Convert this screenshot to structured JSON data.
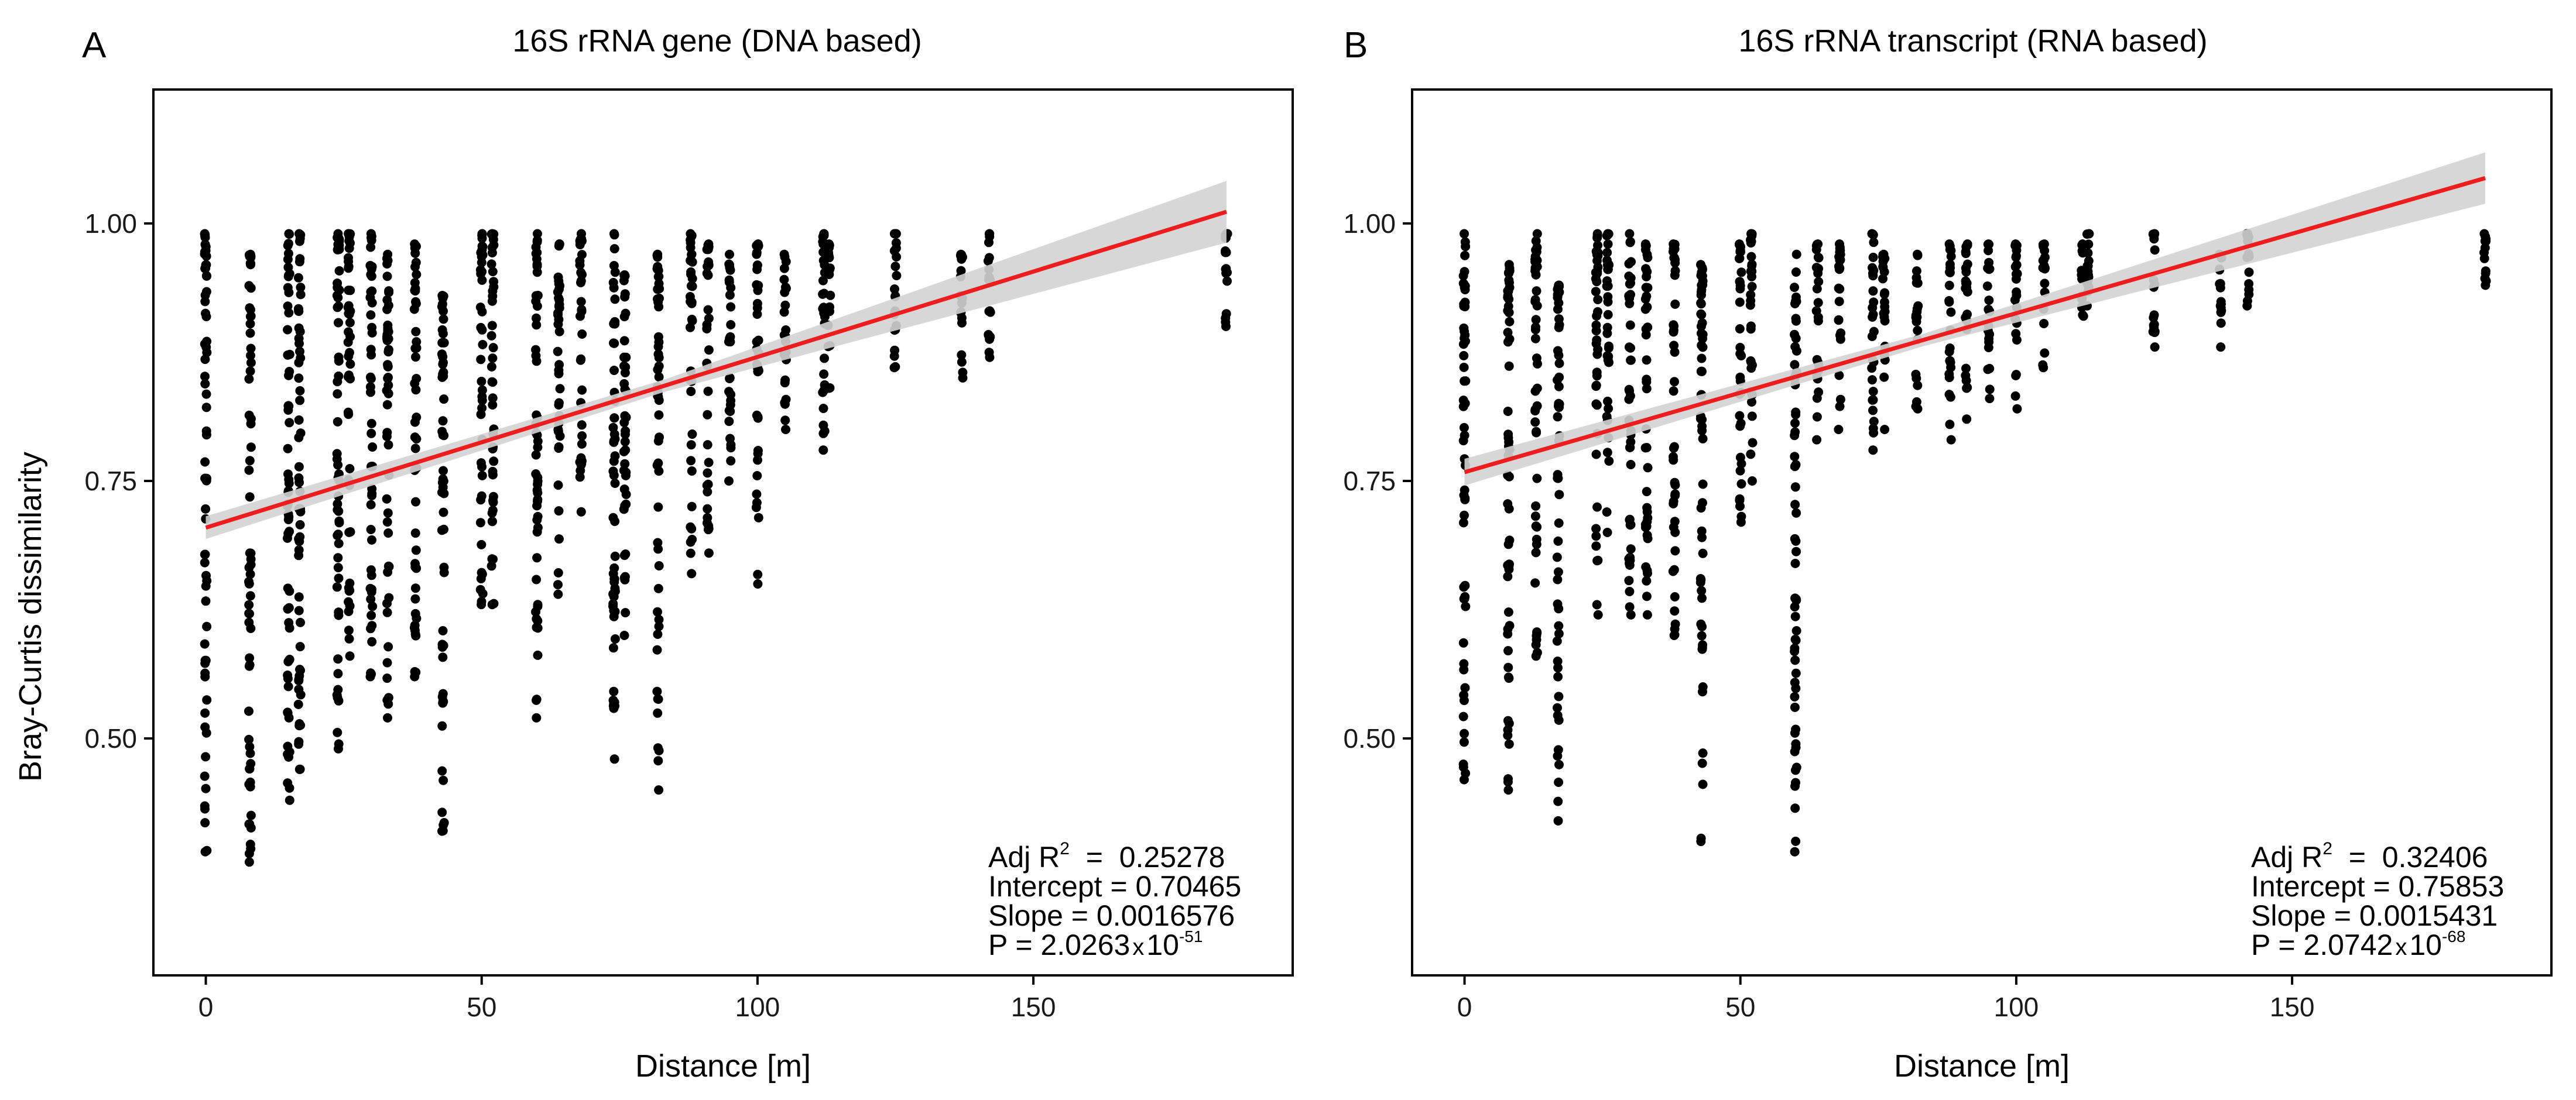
{
  "colors": {
    "points": "#000000",
    "fit_line": "#ee1c1c",
    "confidence_band": "#d3d3d3",
    "frame": "#000000"
  },
  "chart_data": [
    {
      "type": "scatter",
      "panel_label": "A",
      "title": "16S rRNA gene (DNA based)",
      "xlabel": "Distance [m]",
      "ylabel": "Bray-Curtis dissimilarity",
      "xlim": [
        -9.5,
        197
      ],
      "ylim": [
        0.27,
        1.13
      ],
      "xticks": [
        0,
        50,
        100,
        150
      ],
      "xtick_labels": [
        "0",
        "50",
        "100",
        "150"
      ],
      "yticks": [
        0.5,
        0.75,
        1.0
      ],
      "ytick_labels": [
        "0.50",
        "0.75",
        "1.00"
      ],
      "x_positions": [
        0,
        8,
        15,
        17,
        24,
        26,
        30,
        33,
        38,
        43,
        50,
        52,
        60,
        64,
        68,
        74,
        76,
        82,
        88,
        91,
        95,
        100,
        105,
        112,
        113,
        125,
        137,
        142,
        185
      ],
      "point_ranges": [
        [
          0.39,
          0.99
        ],
        [
          0.38,
          0.97
        ],
        [
          0.44,
          0.99
        ],
        [
          0.47,
          0.99
        ],
        [
          0.49,
          0.99
        ],
        [
          0.58,
          0.99
        ],
        [
          0.56,
          0.99
        ],
        [
          0.52,
          0.97
        ],
        [
          0.56,
          0.98
        ],
        [
          0.41,
          0.93
        ],
        [
          0.63,
          0.99
        ],
        [
          0.63,
          0.99
        ],
        [
          0.52,
          0.99
        ],
        [
          0.64,
          0.98
        ],
        [
          0.72,
          0.99
        ],
        [
          0.48,
          0.99
        ],
        [
          0.6,
          0.95
        ],
        [
          0.45,
          0.97
        ],
        [
          0.66,
          0.99
        ],
        [
          0.68,
          0.98
        ],
        [
          0.75,
          0.97
        ],
        [
          0.65,
          0.98
        ],
        [
          0.8,
          0.97
        ],
        [
          0.78,
          0.99
        ],
        [
          0.84,
          0.98
        ],
        [
          0.86,
          0.99
        ],
        [
          0.85,
          0.97
        ],
        [
          0.87,
          0.99
        ],
        [
          0.9,
          0.99
        ]
      ],
      "regression": {
        "intercept": 0.70465,
        "slope": 0.0016576,
        "x_range": [
          0,
          185
        ],
        "band_halfwidth_at": [
          0.011,
          0.006,
          0.03
        ]
      },
      "annotation": {
        "r2_prefix": "Adj R",
        "r2_sup": "2",
        "r2_suffix": "  =  0.25278",
        "intercept": "Intercept = 0.70465",
        "slope": "Slope = 0.0016576",
        "p_prefix": "P = 2.0263",
        "p_times": "x",
        "p_base": "10",
        "p_exp": "-51"
      }
    },
    {
      "type": "scatter",
      "panel_label": "B",
      "title": "16S rRNA transcript (RNA based)",
      "xlabel": "Distance [m]",
      "ylabel": "",
      "xlim": [
        -9.5,
        197
      ],
      "ylim": [
        0.27,
        1.13
      ],
      "xticks": [
        0,
        50,
        100,
        150
      ],
      "xtick_labels": [
        "0",
        "50",
        "100",
        "150"
      ],
      "yticks": [
        0.5,
        0.75,
        1.0
      ],
      "ytick_labels": [
        "0.50",
        "0.75",
        "1.00"
      ],
      "x_positions": [
        0,
        8,
        13,
        17,
        24,
        26,
        30,
        33,
        38,
        43,
        50,
        52,
        60,
        64,
        68,
        74,
        76,
        82,
        88,
        91,
        95,
        100,
        105,
        112,
        113,
        125,
        137,
        142,
        185
      ],
      "point_ranges": [
        [
          0.46,
          0.99
        ],
        [
          0.45,
          0.96
        ],
        [
          0.58,
          0.99
        ],
        [
          0.42,
          0.94
        ],
        [
          0.62,
          0.99
        ],
        [
          0.7,
          0.99
        ],
        [
          0.62,
          0.99
        ],
        [
          0.62,
          0.98
        ],
        [
          0.6,
          0.98
        ],
        [
          0.4,
          0.96
        ],
        [
          0.71,
          0.98
        ],
        [
          0.75,
          0.99
        ],
        [
          0.39,
          0.97
        ],
        [
          0.79,
          0.98
        ],
        [
          0.8,
          0.98
        ],
        [
          0.78,
          0.99
        ],
        [
          0.8,
          0.97
        ],
        [
          0.82,
          0.97
        ],
        [
          0.79,
          0.98
        ],
        [
          0.81,
          0.98
        ],
        [
          0.83,
          0.98
        ],
        [
          0.82,
          0.98
        ],
        [
          0.86,
          0.98
        ],
        [
          0.91,
          0.98
        ],
        [
          0.92,
          0.99
        ],
        [
          0.88,
          0.99
        ],
        [
          0.88,
          0.97
        ],
        [
          0.92,
          0.99
        ],
        [
          0.94,
          0.99
        ]
      ],
      "regression": {
        "intercept": 0.75853,
        "slope": 0.0015431,
        "x_range": [
          0,
          185
        ],
        "band_halfwidth_at": [
          0.013,
          0.006,
          0.025
        ]
      },
      "annotation": {
        "r2_prefix": "Adj R",
        "r2_sup": "2",
        "r2_suffix": "  =  0.32406",
        "intercept": "Intercept = 0.75853",
        "slope": "Slope = 0.0015431",
        "p_prefix": "P = 2.0742",
        "p_times": "x",
        "p_base": "10",
        "p_exp": "-68"
      }
    }
  ]
}
